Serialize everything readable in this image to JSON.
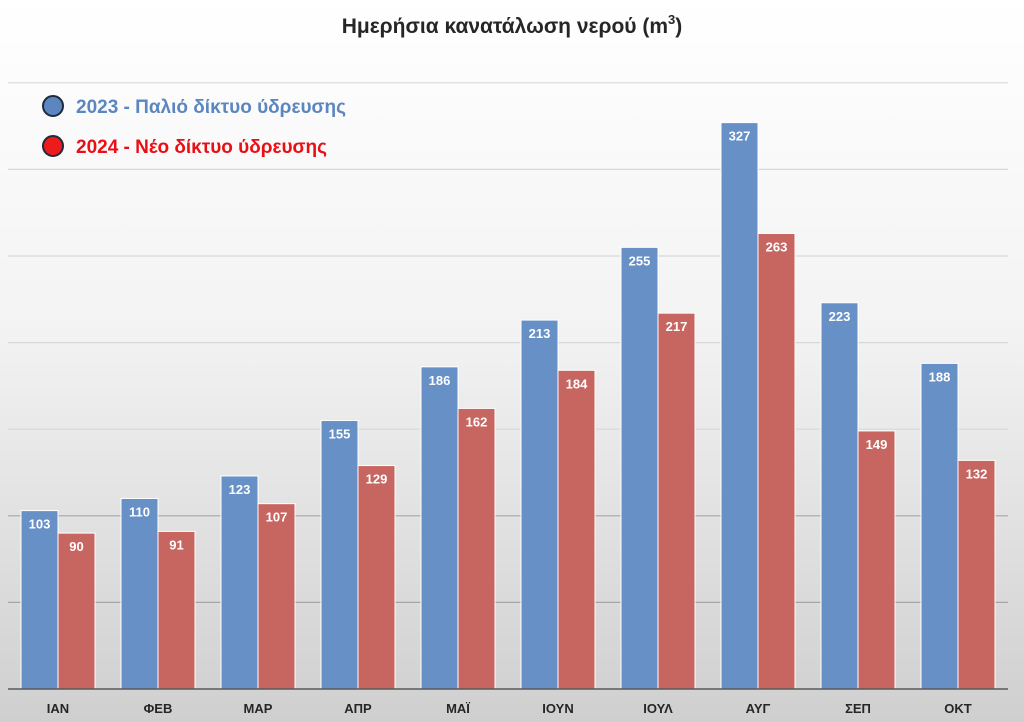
{
  "chart_data": {
    "type": "bar",
    "title": "Ημερήσια κανατάλωση νερού (m",
    "title_superscript": "3",
    "title_suffix": ")",
    "categories": [
      "ΙΑΝ",
      "ΦΕΒ",
      "ΜΑΡ",
      "ΑΠΡ",
      "ΜΑΪ",
      "ΙΟΥΝ",
      "ΙΟΥΛ",
      "ΑΥΓ",
      "ΣΕΠ",
      "ΟΚΤ"
    ],
    "series": [
      {
        "name": "2023 - Παλιό δίκτυο ύδρευσης",
        "color": "#6690c6",
        "legend_text_color": "#5b86c0",
        "values": [
          103,
          110,
          123,
          155,
          186,
          213,
          255,
          327,
          223,
          188
        ]
      },
      {
        "name": "2024 - Νέο δίκτυο ύδρευσης",
        "color": "#c76560",
        "legend_text_color": "#ea0f14",
        "values": [
          90,
          91,
          107,
          129,
          162,
          184,
          217,
          263,
          149,
          132
        ]
      }
    ],
    "ylim": [
      0,
      350
    ],
    "y_gridlines": [
      50,
      100,
      150,
      200,
      250,
      300,
      350
    ],
    "grid": true,
    "legend_position": "top-left",
    "data_labels": true
  }
}
